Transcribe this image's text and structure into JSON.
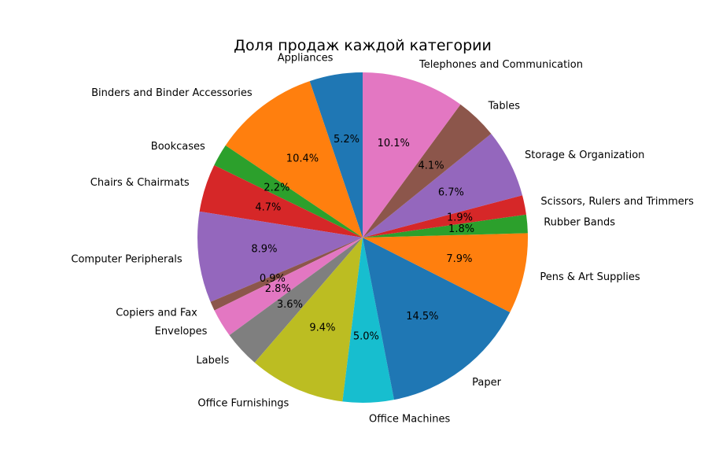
{
  "chart_data": {
    "type": "pie",
    "title": "Доля продаж каждой категории",
    "start_angle_deg": 90,
    "direction": "counterclockwise",
    "categories": [
      "Appliances",
      "Binders and Binder Accessories",
      "Bookcases",
      "Chairs & Chairmats",
      "Computer Peripherals",
      "Copiers and Fax",
      "Envelopes",
      "Labels",
      "Office Furnishings",
      "Office Machines",
      "Paper",
      "Pens & Art Supplies",
      "Rubber Bands",
      "Scissors, Rulers and Trimmers",
      "Storage & Organization",
      "Tables",
      "Telephones and Communication"
    ],
    "values": [
      5.2,
      10.4,
      2.2,
      4.7,
      8.9,
      0.9,
      2.8,
      3.6,
      9.4,
      5.0,
      14.5,
      7.9,
      1.8,
      1.9,
      6.7,
      4.1,
      10.1
    ],
    "percent_labels": [
      "5.2%",
      "10.4%",
      "2.2%",
      "4.7%",
      "8.9%",
      "0.9%",
      "2.8%",
      "3.6%",
      "9.4%",
      "5.0%",
      "14.5%",
      "7.9%",
      "1.8%",
      "1.9%",
      "6.7%",
      "4.1%",
      "10.1%"
    ],
    "colors": [
      "#1f77b4",
      "#ff7f0e",
      "#2ca02c",
      "#d62728",
      "#9467bd",
      "#8c564b",
      "#e377c2",
      "#7f7f7f",
      "#bcbd22",
      "#17becf",
      "#1f77b4",
      "#ff7f0e",
      "#2ca02c",
      "#d62728",
      "#9467bd",
      "#8c564b",
      "#e377c2"
    ]
  }
}
